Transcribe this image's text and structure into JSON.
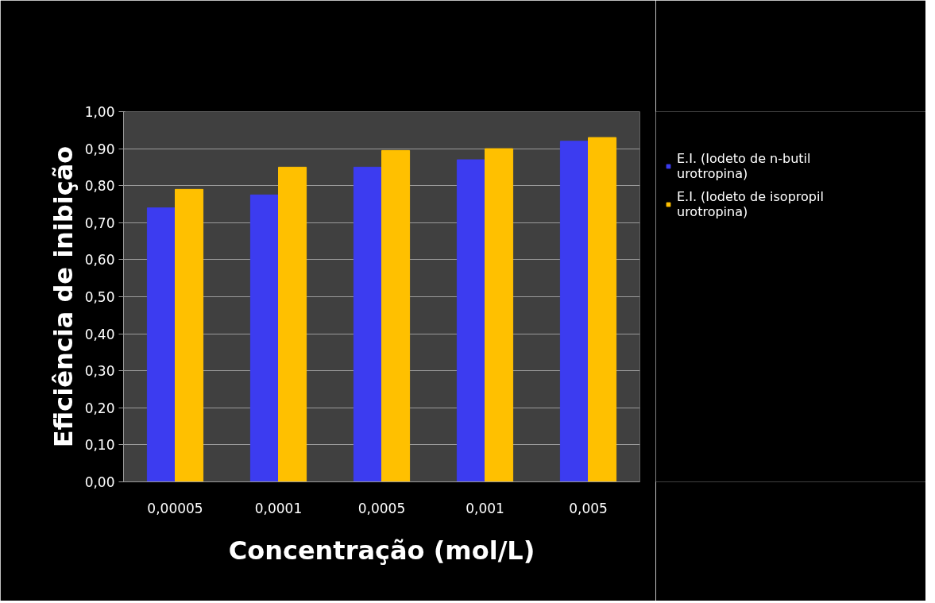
{
  "chart_data": {
    "type": "bar",
    "xlabel": "Concentração (mol/L)",
    "ylabel": "Eficiência de inibição",
    "categories": [
      "0,00005",
      "0,0001",
      "0,0005",
      "0,001",
      "0,005"
    ],
    "series": [
      {
        "name": "E.I. (Iodeto de n-butil urotropina)",
        "color": "#3c3cf0",
        "values": [
          0.74,
          0.775,
          0.85,
          0.87,
          0.92
        ]
      },
      {
        "name": "E.I. (Iodeto de isopropil urotropina)",
        "color": "#ffc000",
        "values": [
          0.79,
          0.85,
          0.895,
          0.9,
          0.93
        ]
      }
    ],
    "ylim": [
      0,
      1
    ],
    "yticks": [
      {
        "value": 0,
        "label": "0,00"
      },
      {
        "value": 0.1,
        "label": "0,10"
      },
      {
        "value": 0.2,
        "label": "0,20"
      },
      {
        "value": 0.3,
        "label": "0,30"
      },
      {
        "value": 0.4,
        "label": "0,40"
      },
      {
        "value": 0.5,
        "label": "0,50"
      },
      {
        "value": 0.6,
        "label": "0,60"
      },
      {
        "value": 0.7,
        "label": "0,70"
      },
      {
        "value": 0.8,
        "label": "0,80"
      },
      {
        "value": 0.9,
        "label": "0,90"
      },
      {
        "value": 1,
        "label": "1,00"
      }
    ],
    "grid": "y",
    "legend": "right"
  }
}
